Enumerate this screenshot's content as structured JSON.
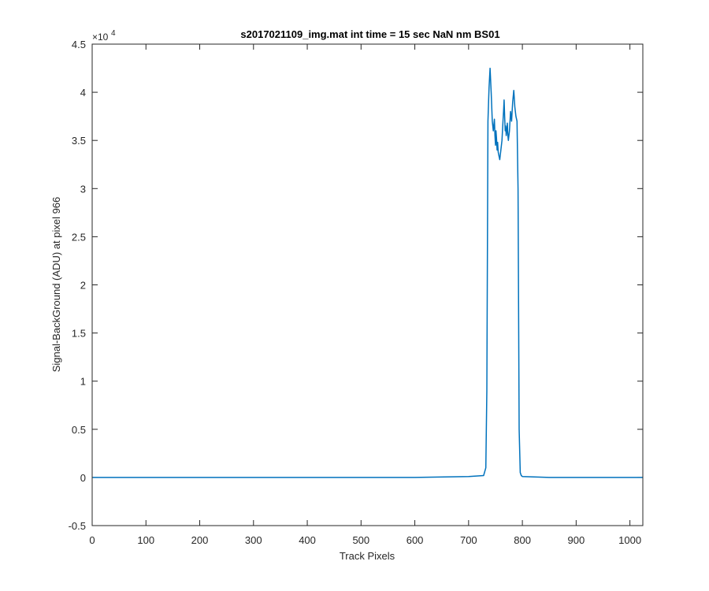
{
  "chart_data": {
    "type": "line",
    "title": "s2017021109_img.mat int time = 15 sec  NaN nm BS01",
    "xlabel": "Track Pixels",
    "ylabel": "Signal-BackGround (ADU) at pixel 966",
    "y_exponent_base": "×10",
    "y_exponent_power": "4",
    "xlim": [
      0,
      1024
    ],
    "ylim": [
      -0.5,
      4.5
    ],
    "y_scale_factor": 10000,
    "xticks": [
      "0",
      "100",
      "200",
      "300",
      "400",
      "500",
      "600",
      "700",
      "800",
      "900",
      "1000"
    ],
    "yticks": [
      "-0.5",
      "0",
      "0.5",
      "1",
      "1.5",
      "2",
      "2.5",
      "3",
      "3.5",
      "4",
      "4.5"
    ],
    "grid": false,
    "series": [
      {
        "color": "#0072BD",
        "x": [
          1,
          100,
          200,
          300,
          400,
          500,
          600,
          700,
          728,
          732,
          734,
          736,
          738,
          740,
          742,
          744,
          746,
          748,
          749,
          750,
          751,
          752,
          753,
          754,
          755,
          756,
          758,
          760,
          762,
          764,
          765,
          766,
          767,
          768,
          769,
          770,
          771,
          772,
          773,
          774,
          776,
          778,
          780,
          782,
          784,
          786,
          788,
          790,
          792,
          794,
          796,
          798,
          800,
          850,
          900,
          950,
          1000,
          1024
        ],
        "y": [
          0.0,
          0.0,
          0.0,
          0.0,
          0.0,
          0.0,
          0.0,
          0.01,
          0.02,
          0.1,
          0.9,
          3.7,
          4.05,
          4.25,
          4.0,
          3.7,
          3.6,
          3.72,
          3.55,
          3.45,
          3.6,
          3.52,
          3.4,
          3.48,
          3.38,
          3.35,
          3.3,
          3.4,
          3.5,
          3.7,
          3.8,
          3.92,
          3.75,
          3.6,
          3.65,
          3.55,
          3.6,
          3.68,
          3.55,
          3.5,
          3.6,
          3.8,
          3.7,
          3.9,
          4.02,
          3.85,
          3.75,
          3.7,
          3.0,
          0.5,
          0.05,
          0.02,
          0.01,
          0.0,
          0.0,
          0.0,
          0.0,
          0.0
        ]
      }
    ]
  }
}
